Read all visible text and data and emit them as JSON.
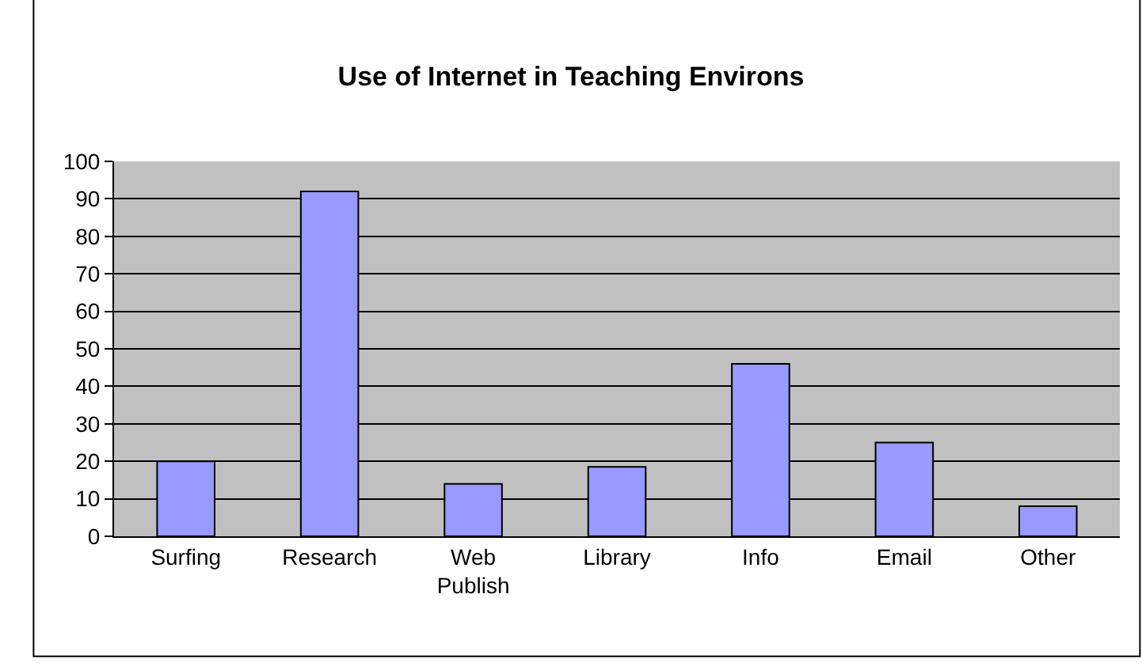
{
  "chart_data": {
    "type": "bar",
    "title": "Use of Internet in Teaching Environs",
    "categories": [
      "Surfing",
      "Research",
      "Web Publish",
      "Library",
      "Info",
      "Email",
      "Other"
    ],
    "values": [
      20,
      92,
      14,
      18.5,
      46,
      25,
      8
    ],
    "color": "#9999ff",
    "ylim": [
      0,
      100
    ],
    "yticks": [
      0,
      10,
      20,
      30,
      40,
      50,
      60,
      70,
      80,
      90,
      100
    ],
    "grid": "y",
    "legend": false
  }
}
